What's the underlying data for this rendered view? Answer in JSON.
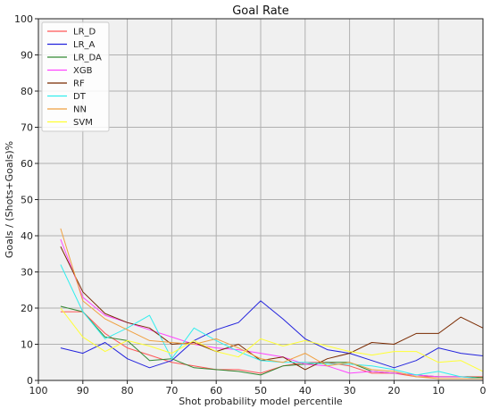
{
  "chart_data": {
    "type": "line",
    "title": "Goal Rate",
    "xlabel": "Shot probability model percentile",
    "ylabel": "Goals / (Shots+Goals)%",
    "xlim": [
      100,
      0
    ],
    "ylim": [
      0,
      100
    ],
    "x_ticks": [
      100,
      90,
      80,
      70,
      60,
      50,
      40,
      30,
      20,
      10,
      0
    ],
    "y_ticks": [
      0,
      10,
      20,
      30,
      40,
      50,
      60,
      70,
      80,
      90,
      100
    ],
    "grid": true,
    "legend_position": "top-left",
    "x": [
      95,
      90,
      85,
      80,
      75,
      70,
      65,
      60,
      55,
      50,
      45,
      40,
      35,
      30,
      25,
      20,
      15,
      10,
      5,
      0
    ],
    "series": [
      {
        "name": "LR_D",
        "color": "#ff5555",
        "values": [
          19,
          19,
          13,
          9,
          7,
          5,
          4,
          3,
          3,
          2,
          4,
          5,
          5,
          4,
          2,
          2,
          1,
          1,
          1,
          1
        ]
      },
      {
        "name": "LR_A",
        "color": "#2222dd",
        "values": [
          9,
          7.5,
          10.5,
          6,
          3.5,
          5.5,
          11,
          14,
          16,
          22,
          17,
          11.5,
          8.5,
          7.5,
          5.5,
          3.5,
          5.5,
          9,
          7.5,
          6.8
        ]
      },
      {
        "name": "LR_DA",
        "color": "#338833",
        "values": [
          20.5,
          19,
          12,
          11,
          5.5,
          6,
          3.5,
          3,
          2.5,
          1.5,
          4,
          4.5,
          5,
          5,
          2.5,
          2,
          1.5,
          1,
          1,
          0.8
        ]
      },
      {
        "name": "XGB",
        "color": "#ff44ff",
        "values": [
          39,
          23,
          18,
          16,
          14,
          12,
          10,
          9,
          8.5,
          7.5,
          6.5,
          4.5,
          4,
          2,
          2.5,
          2,
          1.5,
          1,
          1,
          0.5
        ]
      },
      {
        "name": "RF",
        "color": "#7a2a00",
        "values": [
          37,
          24.5,
          18.5,
          16,
          14.5,
          10,
          10.5,
          8,
          10,
          5.5,
          6.5,
          3,
          6,
          7.5,
          10.5,
          10,
          13,
          13,
          17.5,
          14.5
        ]
      },
      {
        "name": "DT",
        "color": "#33eeee",
        "values": [
          32,
          19,
          11.5,
          14.5,
          18,
          6,
          14.5,
          11,
          8,
          5.5,
          5,
          5,
          4.5,
          4.5,
          4,
          3,
          1.5,
          2.5,
          1,
          0.5
        ]
      },
      {
        "name": "NN",
        "color": "#f0a040",
        "values": [
          42,
          22,
          17,
          14,
          11,
          10.5,
          10,
          11.5,
          9,
          6,
          5,
          7.5,
          4,
          5,
          3,
          2.5,
          1,
          0.5,
          0.5,
          0.5
        ]
      },
      {
        "name": "SVM",
        "color": "#ffff33",
        "values": [
          20,
          12,
          8,
          11,
          9.5,
          7.5,
          11,
          8,
          6.5,
          11.5,
          9.5,
          11,
          9.5,
          8,
          7,
          8,
          8,
          5,
          5.5,
          2.5
        ]
      }
    ]
  }
}
